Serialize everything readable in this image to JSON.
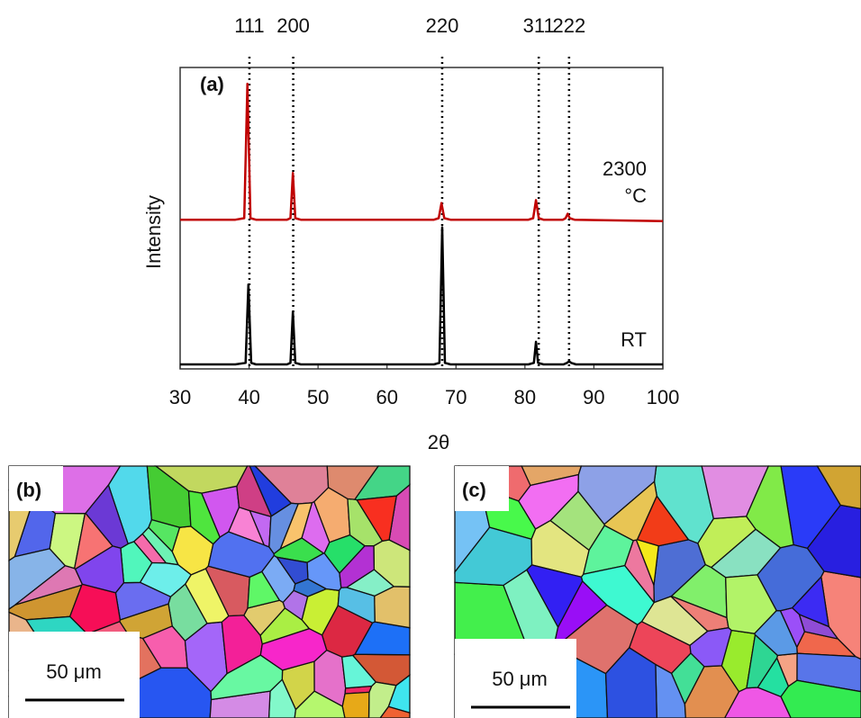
{
  "chart_data": {
    "type": "line",
    "panel_label": "(a)",
    "x_label": "2θ",
    "y_label": "Intensity",
    "xlim": [
      30,
      100
    ],
    "xticks": [
      30,
      40,
      50,
      60,
      70,
      80,
      90,
      100
    ],
    "ylim": [
      0,
      100
    ],
    "reference_lines": [
      {
        "label": "111",
        "x": 40.05
      },
      {
        "label": "200",
        "x": 46.4
      },
      {
        "label": "220",
        "x": 68.0
      },
      {
        "label": "311",
        "x": 82.0
      },
      {
        "label": "222",
        "x": 86.4
      }
    ],
    "series": [
      {
        "name": "2300 °C",
        "color": "#c00000",
        "x": [
          30,
          38,
          39.3,
          39.75,
          40.2,
          41,
          45.5,
          46.0,
          46.35,
          46.7,
          47.5,
          66.8,
          67.5,
          67.9,
          68.3,
          69.2,
          80.5,
          81.2,
          81.6,
          82.0,
          82.7,
          85.5,
          85.9,
          86.2,
          86.5,
          87.2,
          100
        ],
        "values": [
          49.5,
          49.5,
          50,
          94.6,
          50,
          49.5,
          49.5,
          50,
          65,
          50,
          49.5,
          49.5,
          50,
          55,
          50,
          49.5,
          49.5,
          50,
          56,
          50,
          49.5,
          49.5,
          50,
          51.5,
          50,
          49.5,
          49
        ]
      },
      {
        "name": "RT",
        "color": "#000000",
        "x": [
          30,
          38,
          39.5,
          39.9,
          40.3,
          41,
          45.5,
          46.0,
          46.35,
          46.7,
          47.5,
          66.8,
          67.6,
          68.0,
          68.4,
          69.2,
          80.5,
          81.3,
          81.6,
          81.9,
          82.7,
          85.6,
          86.1,
          86.4,
          86.7,
          87.4,
          100
        ],
        "values": [
          1.5,
          1.5,
          2,
          28,
          2,
          1.5,
          1.5,
          2,
          19,
          2,
          1.5,
          1.5,
          2,
          47,
          2,
          1.5,
          1.5,
          2,
          9,
          2,
          1.5,
          1.5,
          2,
          2.5,
          2,
          1.5,
          1.5
        ]
      }
    ]
  },
  "panels": [
    {
      "label": "(b)",
      "scale_bar": "50 μm"
    },
    {
      "label": "(c)",
      "scale_bar": "50 μm"
    }
  ]
}
